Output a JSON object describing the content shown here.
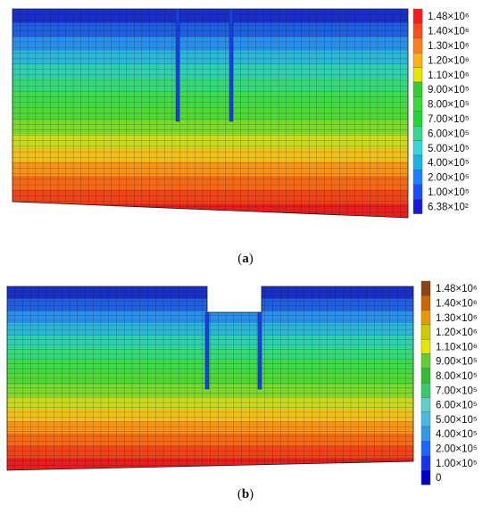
{
  "figures": [
    {
      "id": "a",
      "caption_open": "(",
      "caption_letter": "a",
      "caption_close": ")",
      "legend": [
        "1.48×10⁶",
        "1.40×10⁶",
        "1.30×10⁶",
        "1.20×10⁶",
        "1.10×10⁶",
        "9.00×10⁵",
        "8.00×10⁵",
        "7.00×10⁵",
        "6.00×10⁵",
        "5.00×10⁵",
        "4.00×10⁵",
        "2.00×10⁵",
        "1.00×10⁵",
        "6.38×10²"
      ],
      "legend_colors": [
        "#ff1a1a",
        "#ff4d1a",
        "#ff801a",
        "#ffb31a",
        "#e6e600",
        "#33cc33",
        "#33dd33",
        "#1ad933",
        "#33d98c",
        "#33d9d9",
        "#1ab3e6",
        "#1a80ff",
        "#1a4dff",
        "#1a1ad9"
      ]
    },
    {
      "id": "b",
      "caption_open": "(",
      "caption_letter": "b",
      "caption_close": ")",
      "legend": [
        "1.48×10⁶",
        "1.40×10⁶",
        "1.30×10⁶",
        "1.20×10⁶",
        "1.10×10⁶",
        "9.00×10⁵",
        "8.00×10⁵",
        "7.00×10⁵",
        "6.00×10⁵",
        "5.00×10⁵",
        "4.00×10⁵",
        "2.00×10⁵",
        "1.00×10⁵",
        "0"
      ],
      "legend_colors": [
        "#8b4513",
        "#cc6600",
        "#e69900",
        "#cccc00",
        "#e6e600",
        "#66cc33",
        "#33bb33",
        "#33cc66",
        "#66cccc",
        "#4db8e6",
        "#3399e6",
        "#1a66ff",
        "#1a33e6",
        "#0000cc"
      ]
    }
  ],
  "colors": {
    "contour_ramp": [
      "#1a2fc8",
      "#1f5fe0",
      "#2a8fe8",
      "#2bb8d8",
      "#2fcfb0",
      "#36d97a",
      "#3fd94a",
      "#4fd936",
      "#7ad92b",
      "#c8d91f",
      "#f0c01a",
      "#f59418",
      "#f56a16",
      "#ef4418",
      "#e61e1e"
    ],
    "mesh": "#1a1a1a",
    "drain": "#1a3fd9"
  }
}
